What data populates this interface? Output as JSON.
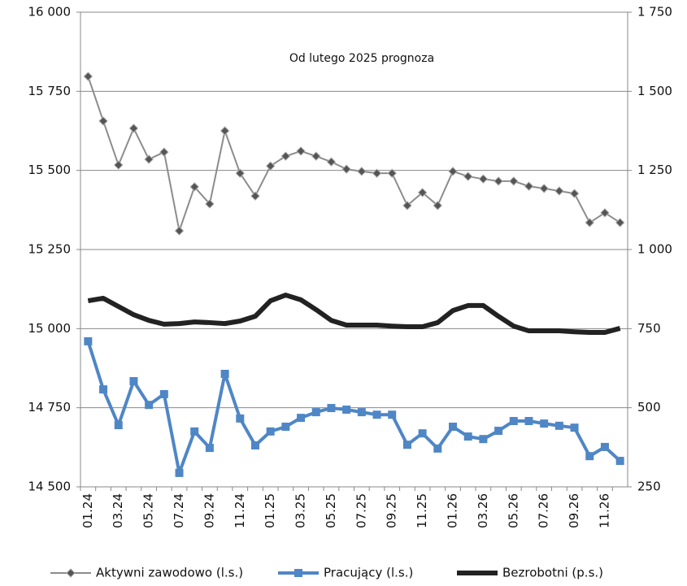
{
  "chart_data": {
    "type": "line",
    "annotation": "Od lutego 2025 prognoza",
    "categories": [
      "01.24",
      null,
      "03.24",
      null,
      "05.24",
      null,
      "07.24",
      null,
      "09.24",
      null,
      "11.24",
      null,
      "01.25",
      null,
      "03.25",
      null,
      "05.25",
      null,
      "07.25",
      null,
      "09.25",
      null,
      "11.25",
      null,
      "01.26",
      null,
      "03.26",
      null,
      "05.26",
      null,
      "07.26",
      null,
      "09.26",
      null,
      "11.26",
      null
    ],
    "series": [
      {
        "name": "Aktywni zawodowo (l.s.)",
        "color": "#8c8c8c",
        "marker": "diamond",
        "axis": "y",
        "values": [
          15797,
          15656,
          15517,
          15633,
          15535,
          15558,
          15309,
          15448,
          15394,
          15625,
          15491,
          15419,
          15514,
          15545,
          15561,
          15545,
          15527,
          15504,
          15497,
          15491,
          15491,
          15389,
          15430,
          15389,
          15497,
          15481,
          15473,
          15466,
          15466,
          15450,
          15443,
          15435,
          15427,
          15335,
          15366,
          15335
        ]
      },
      {
        "name": "Pracujący (l.s.)",
        "color": "#4f86c6",
        "marker": "square",
        "axis": "y",
        "values": [
          14960,
          14808,
          14695,
          14834,
          14759,
          14793,
          14544,
          14675,
          14623,
          14857,
          14716,
          14631,
          14675,
          14690,
          14718,
          14736,
          14749,
          14744,
          14736,
          14728,
          14728,
          14633,
          14669,
          14621,
          14690,
          14659,
          14651,
          14677,
          14708,
          14708,
          14700,
          14693,
          14687,
          14597,
          14626,
          14582
        ]
      },
      {
        "name": "Bezrobotni (p.s.)",
        "color": "#222222",
        "marker": "none",
        "axis": "y2",
        "values": [
          838,
          846,
          820,
          794,
          776,
          764,
          766,
          771,
          769,
          766,
          774,
          789,
          838,
          856,
          841,
          810,
          776,
          761,
          761,
          761,
          758,
          756,
          756,
          769,
          807,
          823,
          823,
          789,
          758,
          743,
          743,
          743,
          740,
          738,
          738,
          751
        ]
      }
    ],
    "ylim": [
      14500,
      16000
    ],
    "yticks": [
      {
        "value": 14500,
        "label": "14 500"
      },
      {
        "value": 14750,
        "label": "14 750"
      },
      {
        "value": 15000,
        "label": "15 000"
      },
      {
        "value": 15250,
        "label": "15 250"
      },
      {
        "value": 15500,
        "label": "15 500"
      },
      {
        "value": 15750,
        "label": "15 750"
      },
      {
        "value": 16000,
        "label": "16 000"
      }
    ],
    "y2lim": [
      250,
      1750
    ],
    "y2ticks": [
      250,
      500,
      750,
      {
        "value": 1000,
        "label": "1 000"
      },
      {
        "value": 1250,
        "label": "1 250"
      },
      {
        "value": 1500,
        "label": "1 500"
      },
      {
        "value": 1750,
        "label": "1 750"
      }
    ],
    "grid": true,
    "legend": "bottom"
  }
}
